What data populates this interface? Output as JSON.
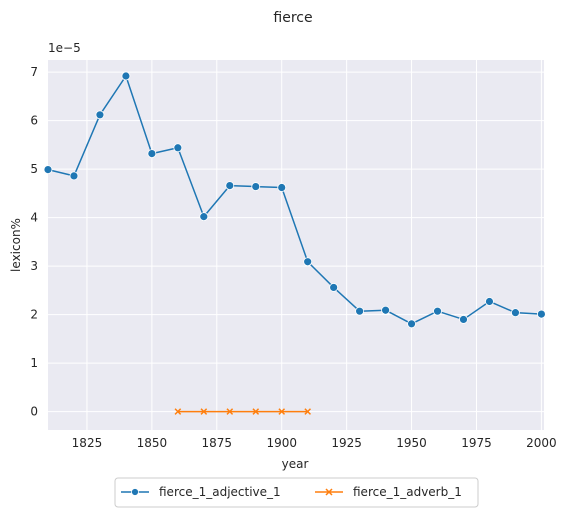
{
  "chart_data": {
    "type": "line",
    "title": "fierce",
    "xlabel": "year",
    "ylabel": "lexicon%",
    "y_offset_label": "1e−5",
    "xlim": [
      1810,
      2001
    ],
    "ylim": [
      -0.38,
      7.25
    ],
    "x_ticks": [
      1825,
      1850,
      1875,
      1900,
      1925,
      1950,
      1975,
      2000
    ],
    "y_ticks": [
      0,
      1,
      2,
      3,
      4,
      5,
      6,
      7
    ],
    "grid": true,
    "legend_position": "bottom-center",
    "series": [
      {
        "name": "fierce_1_adjective_1",
        "color": "#1f77b4",
        "marker": "circle",
        "x": [
          1810,
          1820,
          1830,
          1840,
          1850,
          1860,
          1870,
          1880,
          1890,
          1900,
          1910,
          1920,
          1930,
          1940,
          1950,
          1960,
          1970,
          1980,
          1990,
          2000
        ],
        "y": [
          4.99,
          4.86,
          6.12,
          6.92,
          5.32,
          5.44,
          4.02,
          4.66,
          4.64,
          4.62,
          3.09,
          2.56,
          2.07,
          2.09,
          1.81,
          2.07,
          1.9,
          2.27,
          2.04,
          2.01
        ]
      },
      {
        "name": "fierce_1_adverb_1",
        "color": "#ff7f0e",
        "marker": "x",
        "x": [
          1860,
          1870,
          1880,
          1890,
          1900,
          1910
        ],
        "y": [
          0,
          0,
          0,
          0,
          0,
          0
        ]
      }
    ]
  }
}
